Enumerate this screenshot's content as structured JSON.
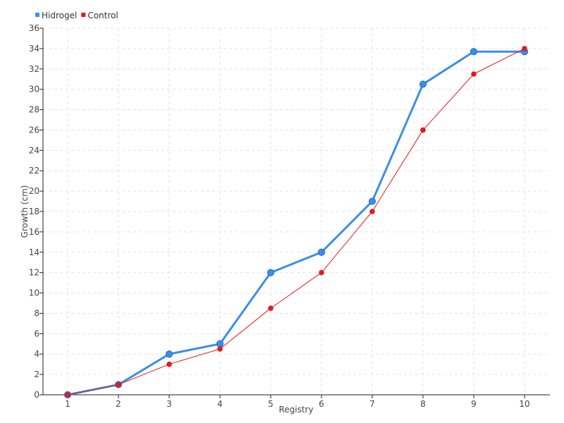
{
  "chart_data": {
    "type": "line",
    "xlabel": "Registry",
    "ylabel": "Growth (cm)",
    "x": [
      1,
      2,
      3,
      4,
      5,
      6,
      7,
      8,
      9,
      10
    ],
    "x_tick_labels": [
      "1",
      "2",
      "3",
      "4",
      "5",
      "6",
      "7",
      "8",
      "9",
      "10"
    ],
    "y_tick_labels": [
      "0",
      "2",
      "4",
      "6",
      "8",
      "10",
      "12",
      "14",
      "16",
      "18",
      "20",
      "22",
      "24",
      "26",
      "28",
      "30",
      "32",
      "34",
      "36"
    ],
    "ylim": [
      0,
      36
    ],
    "grid": true,
    "legend_position": "top-left",
    "series": [
      {
        "name": "Hidrogel",
        "color": "#3b8fe8",
        "values": [
          0,
          1,
          4,
          5,
          12,
          14,
          19,
          30.5,
          33.7,
          33.7
        ]
      },
      {
        "name": "Control",
        "color": "#e31a1c",
        "values": [
          0,
          1,
          3,
          4.5,
          8.5,
          12,
          18,
          26,
          31.5,
          34
        ]
      }
    ]
  }
}
